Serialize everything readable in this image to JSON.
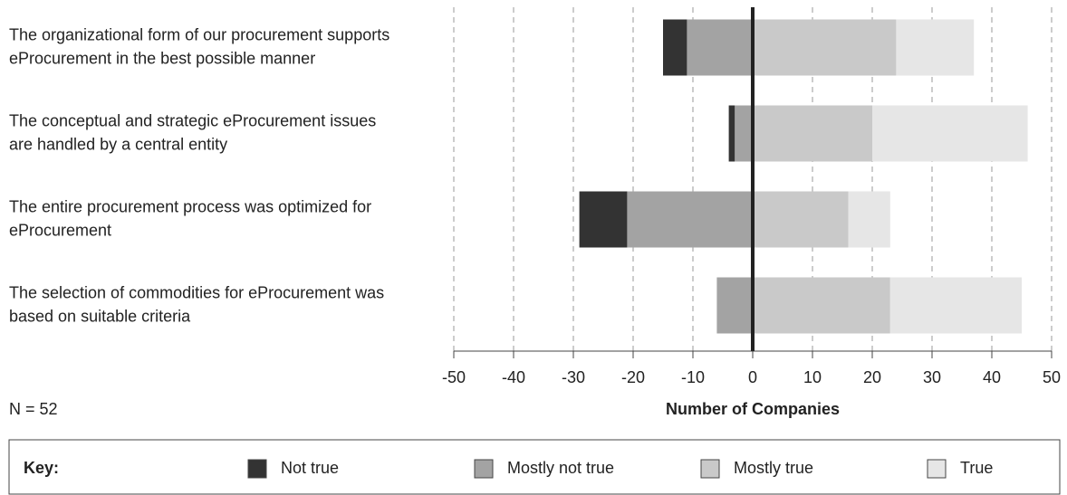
{
  "chart_data": {
    "type": "diverging_bar",
    "categories": [
      [
        "The organizational form of our procurement supports",
        "eProcurement in the best possible manner"
      ],
      [
        "The conceptual and strategic eProcurement issues",
        "are handled by a central entity"
      ],
      [
        "The entire procurement process was optimized for",
        "eProcurement"
      ],
      [
        "The selection of commodities for eProcurement was",
        "based on suitable criteria"
      ]
    ],
    "series": [
      {
        "name": "Not true",
        "color": "#333333",
        "values": [
          -4,
          -1,
          -8,
          0
        ]
      },
      {
        "name": "Mostly not true",
        "color": "#a3a3a3",
        "values": [
          -11,
          -3,
          -21,
          -6
        ]
      },
      {
        "name": "Mostly true",
        "color": "#c9c9c9",
        "values": [
          24,
          20,
          16,
          23
        ]
      },
      {
        "name": "True",
        "color": "#e6e6e6",
        "values": [
          13,
          26,
          7,
          22
        ]
      }
    ],
    "xlabel": "Number of Companies",
    "xlim": [
      -50,
      50
    ],
    "xticks": [
      -50,
      -40,
      -30,
      -20,
      -10,
      0,
      10,
      20,
      30,
      40,
      50
    ],
    "grid": true,
    "annotation": "N = 52",
    "legend_title": "Key:",
    "legend": "bottom"
  }
}
